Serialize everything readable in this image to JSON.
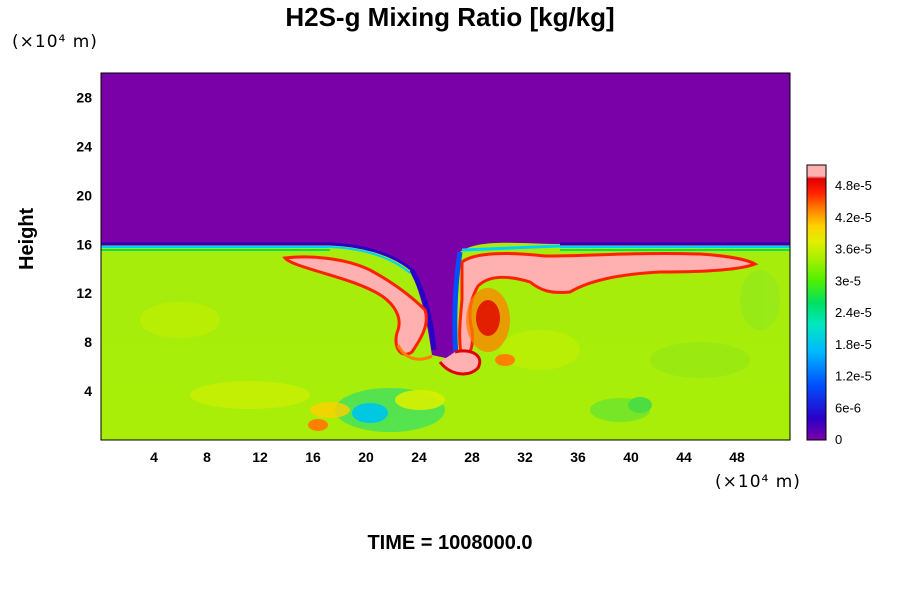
{
  "chart_data": {
    "type": "heatmap",
    "title": "H2S-g Mixing Ratio [kg/kg]",
    "ylabel": "Height",
    "x_unit": "(×10⁴ m)",
    "y_unit": "(×10⁴ m)",
    "xlim": [
      0,
      52
    ],
    "ylim": [
      0,
      30
    ],
    "x_ticks": [
      "4",
      "8",
      "12",
      "16",
      "20",
      "24",
      "28",
      "32",
      "36",
      "40",
      "44",
      "48"
    ],
    "y_ticks": [
      "4",
      "8",
      "12",
      "16",
      "20",
      "24",
      "28"
    ],
    "colorbar": {
      "range": [
        0,
        5.2e-05
      ],
      "ticks": [
        "0",
        "6e-6",
        "1.2e-5",
        "1.8e-5",
        "2.4e-5",
        "3e-5",
        "3.6e-5",
        "4.2e-5",
        "4.8e-5"
      ],
      "colors": [
        "#7a00a8",
        "#2a00c8",
        "#0050ff",
        "#00b8ff",
        "#00e8c0",
        "#00e060",
        "#50f000",
        "#a8f000",
        "#e0f000",
        "#ffd000",
        "#ff8000",
        "#ff2000",
        "#e00000",
        "#ffb0b0"
      ]
    },
    "field_description": {
      "upper_background_value": 0,
      "lower_background_value": 3e-05,
      "interface_height": 15.5,
      "plume_peak_value": 5e-05
    },
    "footer": "TIME = 1008000.0"
  }
}
